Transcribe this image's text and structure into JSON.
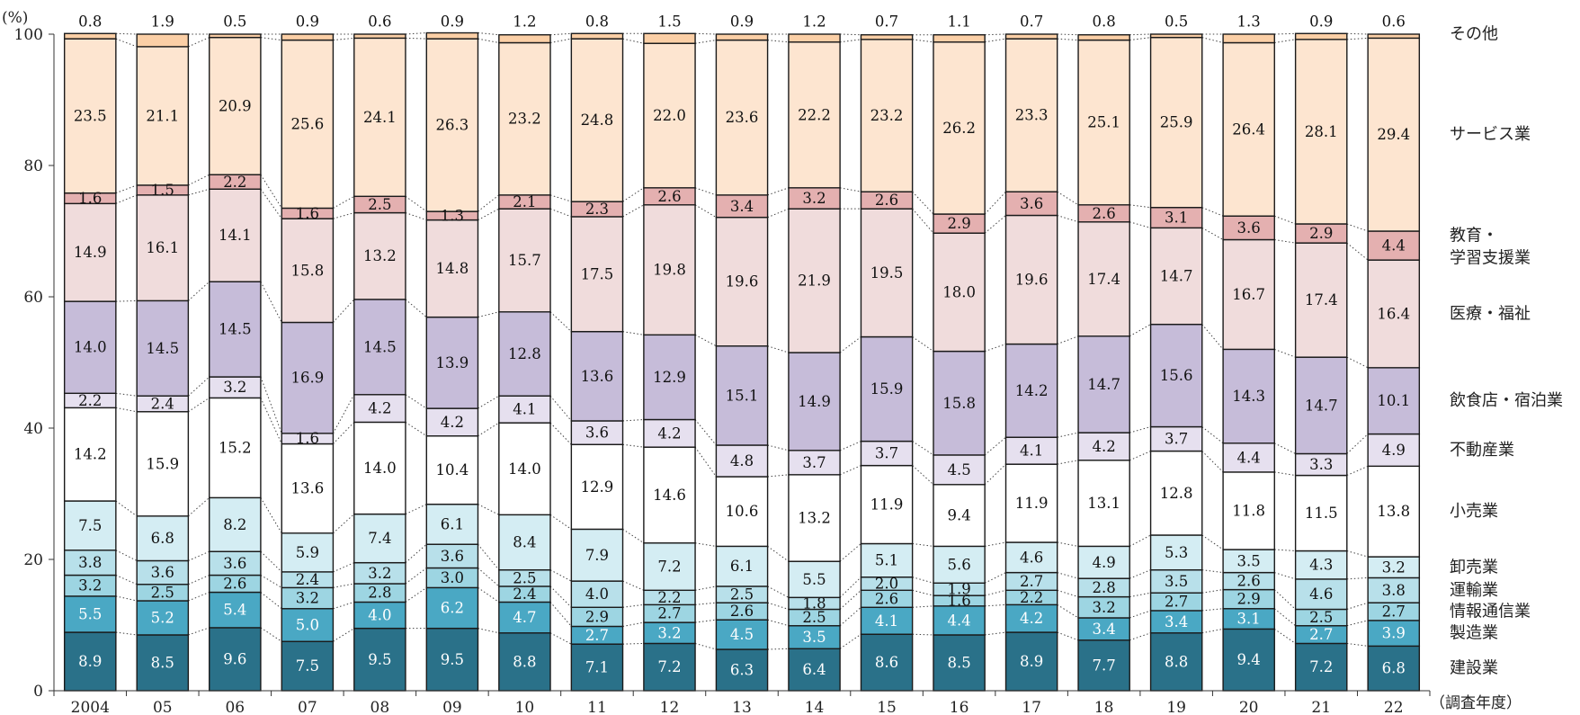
{
  "chart_data": {
    "type": "bar",
    "stacked": true,
    "percent": true,
    "y_unit_label": "(%)",
    "x_unit_label": "（調査年度）",
    "ylim": [
      0,
      100
    ],
    "yticks": [
      "0",
      "20",
      "40",
      "60",
      "80",
      "100"
    ],
    "categories": [
      "2004",
      "05",
      "06",
      "07",
      "08",
      "09",
      "10",
      "11",
      "12",
      "13",
      "14",
      "15",
      "16",
      "17",
      "18",
      "19",
      "20",
      "21",
      "22"
    ],
    "series": [
      {
        "name": "建設業",
        "color": "#2a7189",
        "values": [
          8.9,
          8.5,
          9.6,
          7.5,
          9.5,
          9.5,
          8.8,
          7.1,
          7.2,
          6.3,
          6.4,
          8.6,
          8.5,
          8.9,
          7.7,
          8.8,
          9.4,
          7.2,
          6.8
        ]
      },
      {
        "name": "製造業",
        "color": "#4aa8c4",
        "values": [
          5.5,
          5.2,
          5.4,
          5.0,
          4.0,
          6.2,
          4.7,
          2.7,
          3.2,
          4.5,
          3.5,
          4.1,
          4.4,
          4.2,
          3.4,
          3.4,
          3.1,
          2.7,
          3.9
        ]
      },
      {
        "name": "情報通信業",
        "color": "#9dd5e2",
        "values": [
          3.2,
          2.5,
          2.6,
          3.2,
          2.8,
          3.0,
          2.4,
          2.9,
          2.7,
          2.6,
          2.5,
          2.6,
          1.6,
          2.2,
          3.2,
          2.7,
          2.9,
          2.5,
          2.7
        ]
      },
      {
        "name": "運輸業",
        "color": "#b8e0ea",
        "values": [
          3.8,
          3.6,
          3.6,
          2.4,
          3.2,
          3.6,
          2.5,
          4.0,
          2.2,
          2.5,
          1.8,
          2.0,
          1.9,
          2.7,
          2.8,
          3.5,
          2.6,
          4.6,
          3.8
        ]
      },
      {
        "name": "卸売業",
        "color": "#d4edf3",
        "values": [
          7.5,
          6.8,
          8.2,
          5.9,
          7.4,
          6.1,
          8.4,
          7.9,
          7.2,
          6.1,
          5.5,
          5.1,
          5.6,
          4.6,
          4.9,
          5.3,
          3.5,
          4.3,
          3.2
        ]
      },
      {
        "name": "小売業",
        "color": "#ffffff",
        "values": [
          14.2,
          15.9,
          15.2,
          13.6,
          14.0,
          10.4,
          14.0,
          12.9,
          14.6,
          10.6,
          13.2,
          11.9,
          9.4,
          11.9,
          13.1,
          12.8,
          11.8,
          11.5,
          13.8
        ]
      },
      {
        "name": "不動産業",
        "color": "#e6e0ef",
        "values": [
          2.2,
          2.4,
          3.2,
          1.6,
          4.2,
          4.2,
          4.1,
          3.6,
          4.2,
          4.8,
          3.7,
          3.7,
          4.5,
          4.1,
          4.2,
          3.7,
          4.4,
          3.3,
          4.9
        ]
      },
      {
        "name": "飲食店・宿泊業",
        "color": "#c6bcd9",
        "values": [
          14.0,
          14.5,
          14.5,
          16.9,
          14.5,
          13.9,
          12.8,
          13.6,
          12.9,
          15.1,
          14.9,
          15.9,
          15.8,
          14.2,
          14.7,
          15.6,
          14.3,
          14.7,
          10.1
        ]
      },
      {
        "name": "医療・福祉",
        "color": "#f0dcdc",
        "values": [
          14.9,
          16.1,
          14.1,
          15.8,
          13.2,
          14.8,
          15.7,
          17.5,
          19.8,
          19.6,
          21.9,
          19.5,
          18.0,
          19.6,
          17.4,
          14.7,
          16.7,
          17.4,
          16.4
        ]
      },
      {
        "name": "教育・学習支援業",
        "color": "#e4b0b0",
        "values": [
          1.6,
          1.5,
          2.2,
          1.6,
          2.5,
          1.3,
          2.1,
          2.3,
          2.6,
          3.4,
          3.2,
          2.6,
          2.9,
          3.6,
          2.6,
          3.1,
          3.6,
          2.9,
          4.4
        ]
      },
      {
        "name": "サービス業",
        "color": "#fde5d0",
        "values": [
          23.5,
          21.1,
          20.9,
          25.6,
          24.1,
          26.3,
          23.2,
          24.8,
          22.0,
          23.6,
          22.2,
          23.2,
          26.2,
          23.3,
          25.1,
          25.9,
          26.4,
          28.1,
          29.4
        ]
      },
      {
        "name": "その他",
        "color": "#fbcfa6",
        "values": [
          0.8,
          1.9,
          0.5,
          0.9,
          0.6,
          0.9,
          1.2,
          0.8,
          1.5,
          0.9,
          1.2,
          0.7,
          1.1,
          0.7,
          0.8,
          0.5,
          1.3,
          0.9,
          0.6
        ]
      }
    ],
    "legend_lines": [
      [
        "建設業"
      ],
      [
        "製造業"
      ],
      [
        "情報通信業"
      ],
      [
        "運輸業"
      ],
      [
        "卸売業"
      ],
      [
        "小売業"
      ],
      [
        "不動産業"
      ],
      [
        "飲食店・宿泊業"
      ],
      [
        "医療・福祉"
      ],
      [
        "教育・",
        "学習支援業"
      ],
      [
        "サービス業"
      ],
      [
        "その他"
      ]
    ]
  }
}
